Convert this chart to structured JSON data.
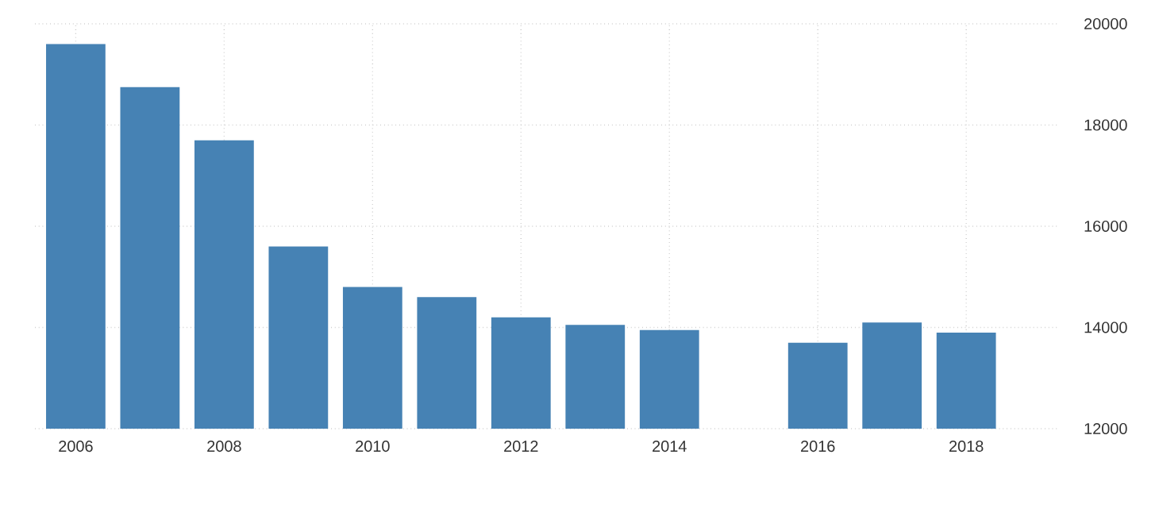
{
  "chart_data": {
    "type": "bar",
    "x": [
      2006,
      2007,
      2008,
      2009,
      2010,
      2011,
      2012,
      2013,
      2014,
      2015,
      2016,
      2017,
      2018
    ],
    "values": [
      19600,
      18750,
      17700,
      15600,
      14800,
      14600,
      14200,
      14050,
      13950,
      null,
      13700,
      14100,
      13900
    ],
    "color": "#4682b4",
    "xlim": [
      2005.45,
      2019.25
    ],
    "xticks": [
      2006,
      2008,
      2010,
      2012,
      2014,
      2016,
      2018
    ],
    "ylim": [
      12000,
      20000
    ],
    "yticks": [
      12000,
      14000,
      16000,
      18000,
      20000
    ],
    "grid": true
  }
}
